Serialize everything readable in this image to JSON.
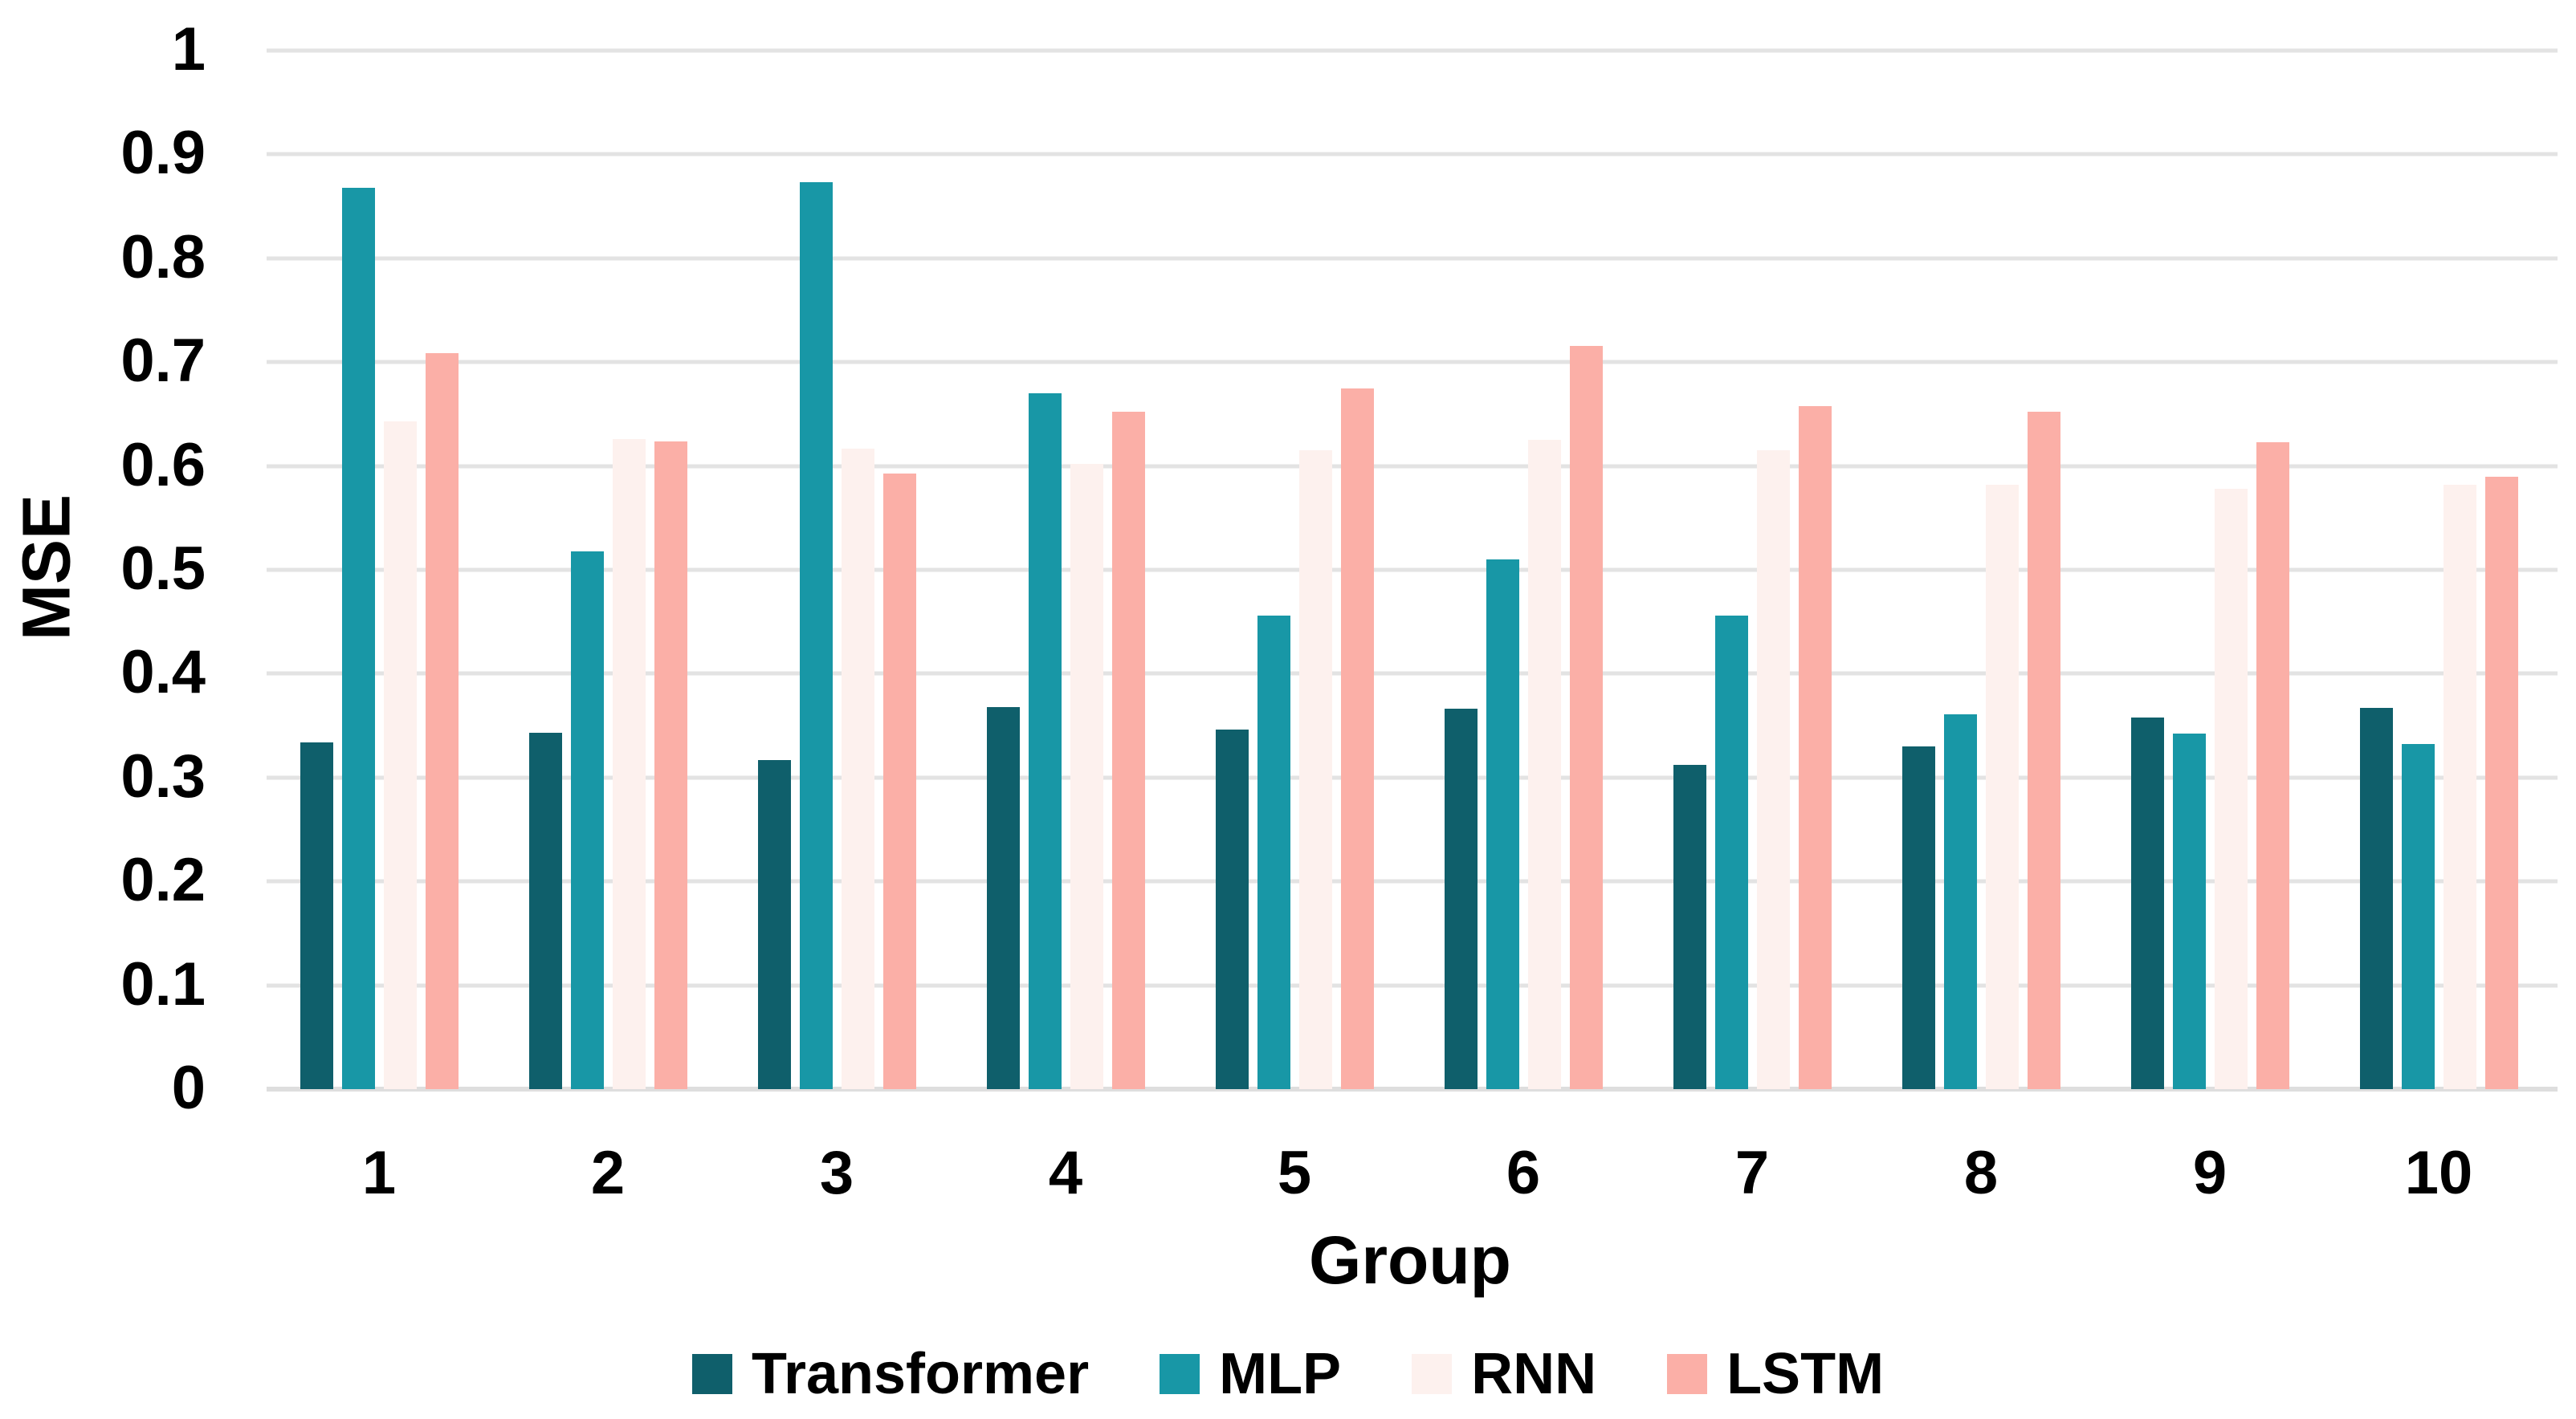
{
  "page": {
    "background": "#ffffff"
  },
  "chart_data": {
    "type": "bar",
    "title": "",
    "xlabel": "Group",
    "ylabel": "MSE",
    "categories": [
      "1",
      "2",
      "3",
      "4",
      "5",
      "6",
      "7",
      "8",
      "9",
      "10"
    ],
    "series": [
      {
        "name": "Transformer",
        "color": "#0F5F6B",
        "values": [
          0.334,
          0.343,
          0.317,
          0.368,
          0.346,
          0.366,
          0.312,
          0.33,
          0.358,
          0.367
        ]
      },
      {
        "name": "MLP",
        "color": "#1897A6",
        "values": [
          0.868,
          0.518,
          0.873,
          0.67,
          0.456,
          0.51,
          0.456,
          0.361,
          0.342,
          0.332
        ]
      },
      {
        "name": "RNN",
        "color": "#FDF1EE",
        "values": [
          0.643,
          0.626,
          0.617,
          0.602,
          0.615,
          0.625,
          0.615,
          0.582,
          0.578,
          0.582
        ]
      },
      {
        "name": "LSTM",
        "color": "#FBAFA7",
        "values": [
          0.709,
          0.624,
          0.593,
          0.652,
          0.675,
          0.716,
          0.658,
          0.652,
          0.623,
          0.59
        ]
      }
    ],
    "ylim": [
      0,
      1
    ],
    "ytick_step": 0.1,
    "ytick_labels": [
      "0",
      "0.1",
      "0.2",
      "0.3",
      "0.4",
      "0.5",
      "0.6",
      "0.7",
      "0.8",
      "0.9",
      "1"
    ],
    "grid": true,
    "gridline_color": "#e3e3e3",
    "legend_position": "bottom",
    "legend_entries": [
      "Transformer",
      "MLP",
      "RNN",
      "LSTM"
    ]
  }
}
